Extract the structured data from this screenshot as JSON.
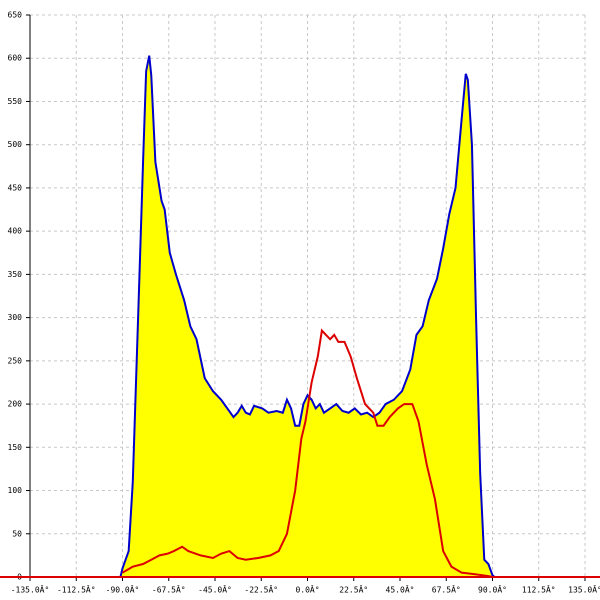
{
  "chart_data": {
    "type": "area_line",
    "xlim": [
      -135,
      135
    ],
    "ylim": [
      0,
      650
    ],
    "xticks": [
      {
        "value": -135,
        "label": "-135.0Â°"
      },
      {
        "value": -112.5,
        "label": "-112.5Â°"
      },
      {
        "value": -90,
        "label": "-90.0Â°"
      },
      {
        "value": -67.5,
        "label": "-67.5Â°"
      },
      {
        "value": -45,
        "label": "-45.0Â°"
      },
      {
        "value": -22.5,
        "label": "-22.5Â°"
      },
      {
        "value": 0,
        "label": "0.0Â°"
      },
      {
        "value": 22.5,
        "label": "22.5Â°"
      },
      {
        "value": 45,
        "label": "45.0Â°"
      },
      {
        "value": 67.5,
        "label": "67.5Â°"
      },
      {
        "value": 90,
        "label": "90.0Â°"
      },
      {
        "value": 112.5,
        "label": "112.5Â°"
      },
      {
        "value": 135,
        "label": "135.0Â°"
      }
    ],
    "yticks": [
      0,
      50,
      100,
      150,
      200,
      250,
      300,
      350,
      400,
      450,
      500,
      550,
      600,
      650
    ],
    "grid": true,
    "series": [
      {
        "color": "#0000cc",
        "fill": "#ffff00",
        "x": [
          -91,
          -90,
          -87,
          -85,
          -82,
          -80,
          -78.5,
          -77,
          -76,
          -74,
          -71,
          -69.5,
          -67,
          -64,
          -60,
          -57,
          -54,
          -50,
          -46,
          -42,
          -39,
          -36,
          -34,
          -32,
          -30,
          -28,
          -26,
          -22,
          -19,
          -15,
          -12,
          -10,
          -8,
          -6,
          -4,
          -2,
          0,
          2,
          4,
          6,
          8,
          11,
          14,
          17,
          20,
          23,
          26,
          29,
          32,
          35,
          38,
          42,
          46,
          50,
          53,
          56,
          59,
          63,
          66,
          69,
          72,
          75,
          77,
          78,
          80,
          82,
          84,
          86,
          88,
          90,
          91
        ],
        "values": [
          0,
          10,
          30,
          110,
          330,
          480,
          585,
          603,
          580,
          480,
          435,
          425,
          375,
          350,
          320,
          290,
          275,
          230,
          215,
          205,
          195,
          185,
          190,
          198,
          190,
          188,
          198,
          195,
          190,
          192,
          190,
          205,
          195,
          175,
          175,
          200,
          210,
          205,
          195,
          200,
          190,
          195,
          200,
          192,
          190,
          195,
          188,
          190,
          185,
          190,
          200,
          205,
          215,
          240,
          280,
          290,
          320,
          345,
          380,
          420,
          450,
          530,
          582,
          575,
          500,
          300,
          120,
          20,
          15,
          2,
          0
        ]
      },
      {
        "color": "#dd0000",
        "x": [
          -90,
          -85,
          -80,
          -76,
          -72,
          -68,
          -65,
          -61,
          -58,
          -52,
          -46,
          -42,
          -38,
          -34,
          -30,
          -24,
          -18,
          -14,
          -10,
          -6,
          -3,
          -1,
          2,
          5,
          7,
          9,
          11,
          13,
          15,
          18,
          21,
          24,
          28,
          32,
          34,
          37,
          40,
          44,
          47,
          51,
          54,
          58,
          62,
          66,
          70,
          75,
          82,
          88,
          90
        ],
        "values": [
          5,
          12,
          15,
          20,
          25,
          27,
          30,
          35,
          30,
          25,
          22,
          27,
          30,
          22,
          20,
          22,
          25,
          30,
          50,
          100,
          160,
          180,
          225,
          255,
          285,
          280,
          275,
          280,
          272,
          272,
          255,
          230,
          200,
          190,
          175,
          175,
          185,
          195,
          200,
          200,
          180,
          130,
          90,
          30,
          12,
          5,
          3,
          1,
          0
        ]
      }
    ]
  }
}
